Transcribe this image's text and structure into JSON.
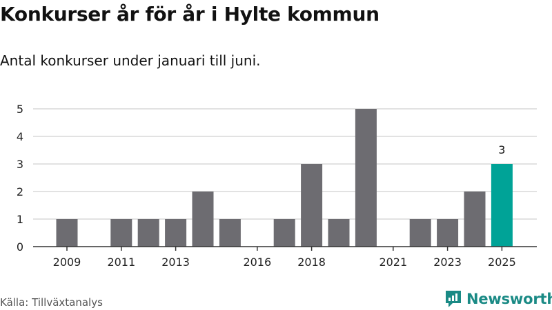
{
  "header": {
    "title": "Konkurser år för år i Hylte kommun",
    "subtitle": "Antal konkurser under januari till juni."
  },
  "footer": {
    "source": "Källa: Tillväxtanalys",
    "logo_text": "Newsworthy"
  },
  "colors": {
    "bar": "#6d6c71",
    "highlight": "#00a397",
    "grid": "#d9d9d9",
    "logo": "#1a8a85"
  },
  "chart_data": {
    "type": "bar",
    "title": "Konkurser år för år i Hylte kommun",
    "subtitle": "Antal konkurser under januari till juni.",
    "categories": [
      "2009",
      "2010",
      "2011",
      "2012",
      "2013",
      "2014",
      "2015",
      "2016",
      "2017",
      "2018",
      "2019",
      "2020",
      "2021",
      "2022",
      "2023",
      "2024",
      "2025"
    ],
    "values": [
      1,
      0,
      1,
      1,
      1,
      2,
      1,
      0,
      1,
      3,
      1,
      5,
      0,
      1,
      1,
      2,
      3
    ],
    "x_tick_labels": [
      "2009",
      "2011",
      "2013",
      "2016",
      "2018",
      "2021",
      "2023",
      "2025"
    ],
    "y_ticks": [
      0,
      1,
      2,
      3,
      4,
      5
    ],
    "ylim": [
      0,
      5
    ],
    "highlight_category": "2025",
    "highlight_label": "3",
    "grid": true,
    "legend": "none",
    "xlabel": "",
    "ylabel": ""
  }
}
